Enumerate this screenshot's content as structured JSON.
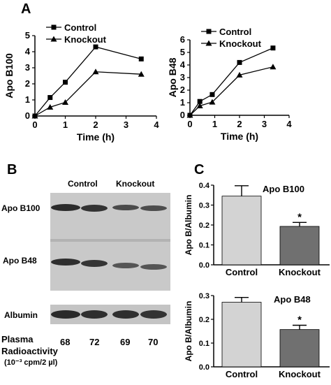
{
  "panels": {
    "a": "A",
    "b": "B",
    "c": "C"
  },
  "chart_data": [
    {
      "type": "line",
      "ylabel": "Apo B100",
      "xlabel": "Time (h)",
      "xlim": [
        0,
        4
      ],
      "ylim": [
        0,
        5
      ],
      "xticks": [
        0,
        1,
        2,
        3,
        4
      ],
      "yticks": [
        0,
        1,
        2,
        3,
        4,
        5
      ],
      "legend": "top-left",
      "series": [
        {
          "name": "Control",
          "marker": "square",
          "x": [
            0,
            0.5,
            1,
            2,
            3.5
          ],
          "y": [
            0,
            1.15,
            2.1,
            4.3,
            3.55
          ]
        },
        {
          "name": "Knockout",
          "marker": "triangle",
          "x": [
            0,
            0.5,
            1,
            2,
            3.5
          ],
          "y": [
            0,
            0.55,
            0.85,
            2.75,
            2.6
          ]
        }
      ]
    },
    {
      "type": "line",
      "ylabel": "Apo B48",
      "xlabel": "Time (h)",
      "xlim": [
        0,
        4
      ],
      "ylim": [
        0,
        6
      ],
      "xticks": [
        0,
        1,
        2,
        3,
        4
      ],
      "yticks": [
        0,
        1,
        2,
        3,
        4,
        5,
        6
      ],
      "legend": "top-left",
      "series": [
        {
          "name": "Control",
          "marker": "square",
          "x": [
            0,
            0.4,
            0.9,
            2,
            3.35
          ],
          "y": [
            0,
            1.1,
            1.65,
            4.2,
            5.35
          ]
        },
        {
          "name": "Knockout",
          "marker": "triangle",
          "x": [
            0,
            0.4,
            0.9,
            2,
            3.35
          ],
          "y": [
            0,
            0.75,
            1.05,
            3.2,
            3.85
          ]
        }
      ]
    },
    {
      "type": "bar",
      "annotation": "Apo B100",
      "ylabel": "Apo B/Albumin",
      "categories": [
        "Control",
        "Knockout"
      ],
      "values": [
        0.345,
        0.193
      ],
      "errors": [
        0.052,
        0.02
      ],
      "significance": [
        "",
        "*"
      ],
      "colors": [
        "#d3d3d3",
        "#707070"
      ],
      "ylim": [
        0,
        0.4
      ],
      "yticks": [
        "0.0",
        "0.1",
        "0.2",
        "0.3",
        "0.4"
      ]
    },
    {
      "type": "bar",
      "annotation": "Apo B48",
      "ylabel": "Apo B/Albumin",
      "categories": [
        "Control",
        "Knockout"
      ],
      "values": [
        0.272,
        0.157
      ],
      "errors": [
        0.02,
        0.018
      ],
      "significance": [
        "",
        "*"
      ],
      "colors": [
        "#d3d3d3",
        "#707070"
      ],
      "ylim": [
        0,
        0.3
      ],
      "yticks": [
        "0.0",
        "0.1",
        "0.2",
        "0.3"
      ]
    }
  ],
  "blot": {
    "header_control": "Control",
    "header_knockout": "Knockout",
    "band_apob100": "Apo B100",
    "band_apob48": "Apo B48",
    "band_albumin": "Albumin",
    "radio_label_1": "Plasma",
    "radio_label_2": "Radioactivity",
    "radio_units": "(10⁻³ cpm/2 µl)",
    "radio_values": [
      "68",
      "72",
      "69",
      "70"
    ]
  }
}
